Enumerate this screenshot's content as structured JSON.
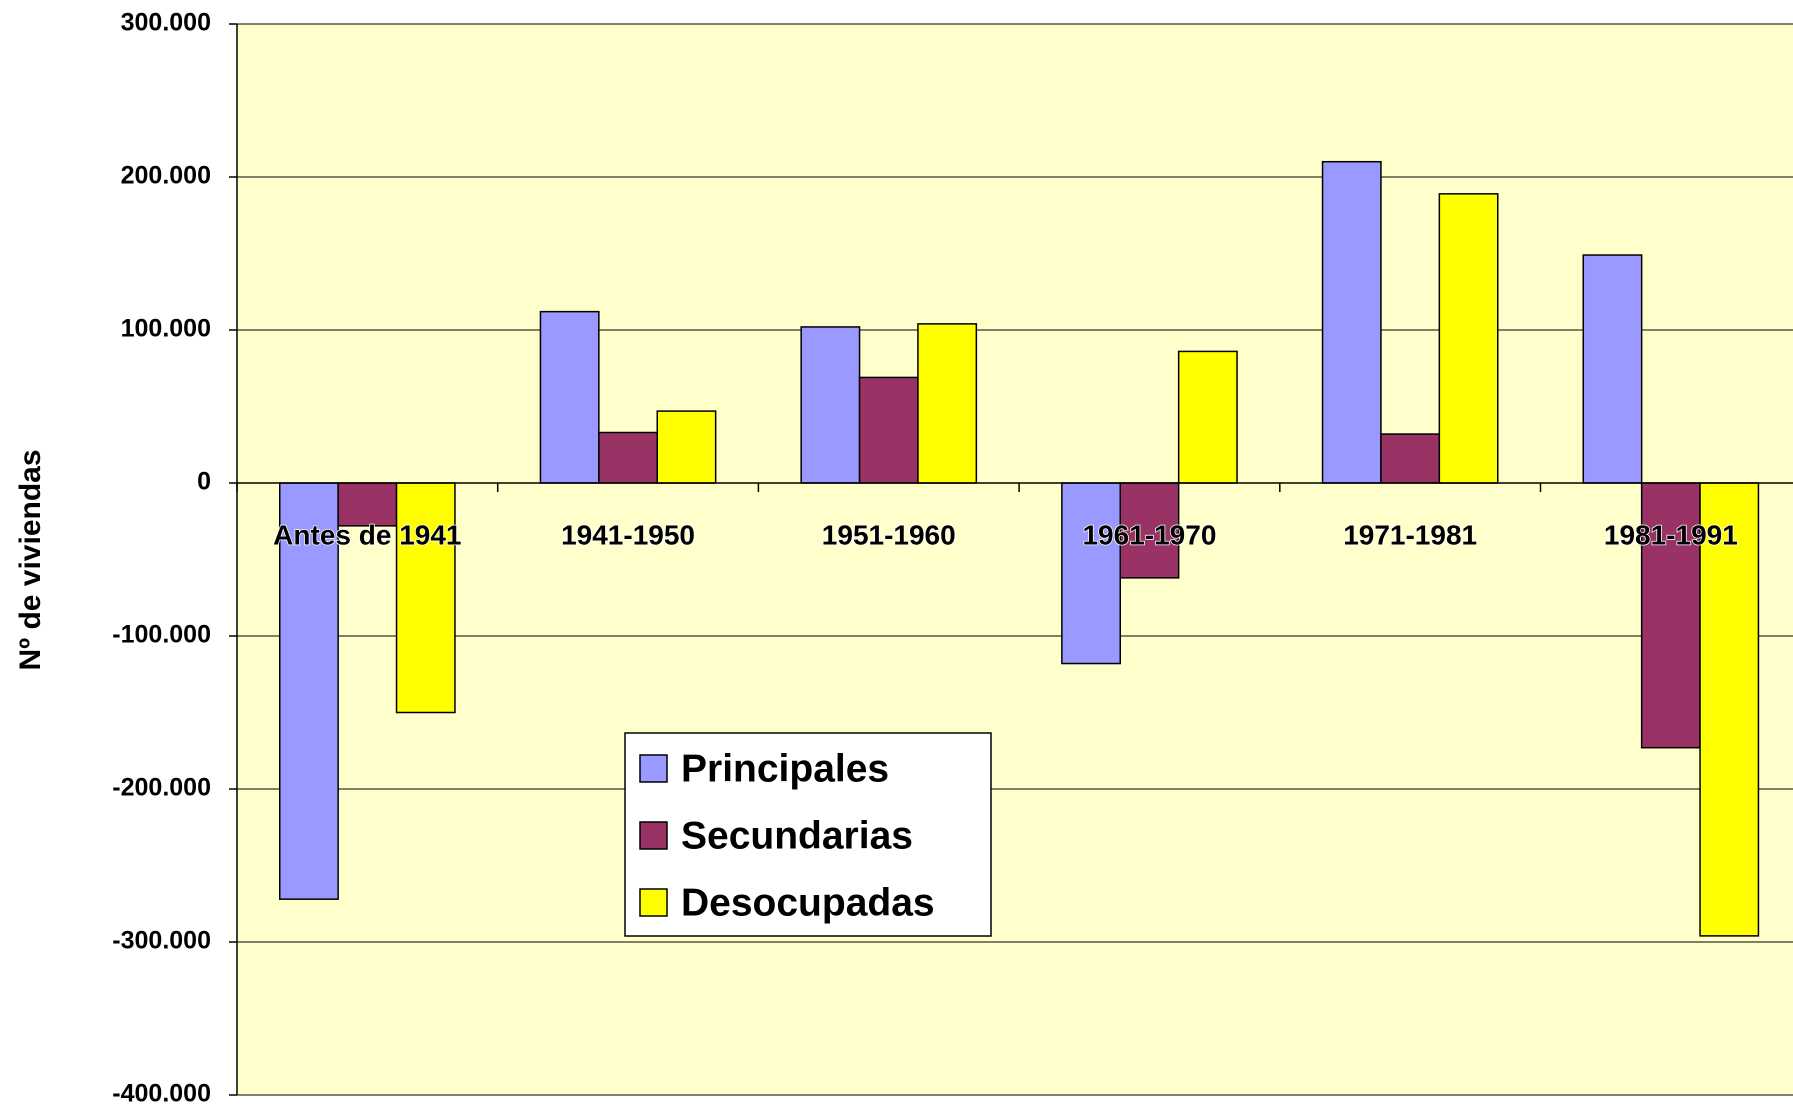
{
  "chart_data": {
    "type": "bar",
    "y_label": "Nº de viviendas",
    "categories": [
      "Antes de 1941",
      "1941-1950",
      "1951-1960",
      "1961-1970",
      "1971-1981",
      "1981-1991"
    ],
    "series": [
      {
        "name": "Principales",
        "color": "#9999ff",
        "values": [
          -272000,
          112000,
          102000,
          -118000,
          210000,
          149000
        ]
      },
      {
        "name": "Secundarias",
        "color": "#993366",
        "values": [
          -28000,
          33000,
          69000,
          -62000,
          32000,
          -173000
        ]
      },
      {
        "name": "Desocupadas",
        "color": "#ffff00",
        "values": [
          -150000,
          47000,
          104000,
          86000,
          189000,
          -296000
        ]
      }
    ],
    "ylim": [
      -400000,
      300000
    ],
    "yticks": [
      {
        "value": -400000,
        "label": "-400.000"
      },
      {
        "value": -300000,
        "label": "-300.000"
      },
      {
        "value": -200000,
        "label": "-200.000"
      },
      {
        "value": -100000,
        "label": "-100.000"
      },
      0,
      {
        "value": 100000,
        "label": "100.000"
      },
      {
        "value": 200000,
        "label": "200.000"
      },
      {
        "value": 300000,
        "label": "300.000"
      }
    ],
    "grid": true,
    "legend": "lower center",
    "background": "#ffffcc"
  }
}
